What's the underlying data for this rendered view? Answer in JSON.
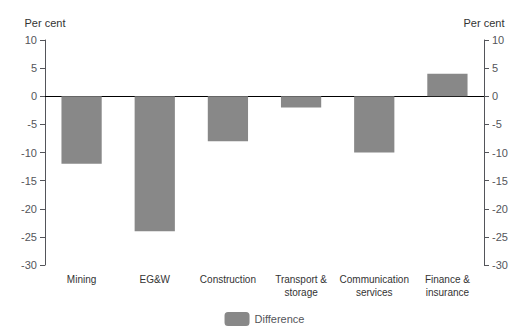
{
  "chart_data": {
    "type": "bar",
    "categories": [
      "Mining",
      "EG&W",
      "Construction",
      "Transport &\nstorage",
      "Communication\nservices",
      "Finance &\ninsurance"
    ],
    "series": [
      {
        "name": "Difference",
        "color": "#888888",
        "values": [
          -12,
          -24,
          -8,
          -2,
          -10,
          4
        ]
      }
    ],
    "ylabel": "Per cent",
    "y2label": "Per cent",
    "ylim": [
      -30,
      10
    ],
    "yticks": [
      10,
      5,
      0,
      -5,
      -10,
      -15,
      -20,
      -25,
      -30
    ],
    "y2lim": [
      -30,
      10
    ],
    "y2ticks": [
      10,
      5,
      0,
      -5,
      -10,
      -15,
      -20,
      -25,
      -30
    ],
    "grid": false,
    "legend": "bottom"
  }
}
